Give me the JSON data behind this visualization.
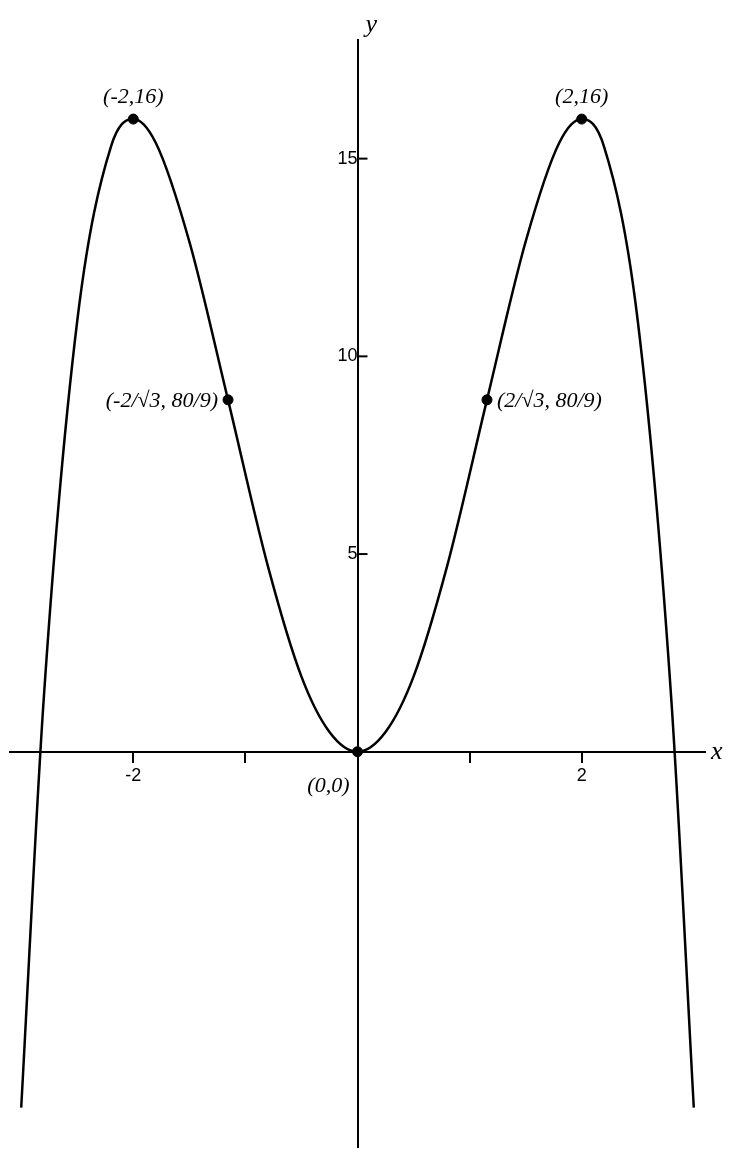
{
  "chart_data": {
    "type": "line",
    "xlabel": "x",
    "ylabel": "y",
    "line_style": "solid",
    "marker": "none",
    "grid": false,
    "legend": false,
    "xlim": [
      -3.1,
      3.1
    ],
    "ylim": [
      -10,
      18
    ],
    "xticks": [
      -2,
      {
        "value": -1,
        "label": null
      },
      {
        "value": 1,
        "label": null
      },
      2
    ],
    "yticks": [
      5,
      10,
      15
    ],
    "series": [
      {
        "color": "#000000",
        "x": [
          -3,
          -2.8,
          -2.5,
          -2.2,
          -2,
          -1.8,
          -1.5,
          -1.155,
          -0.8,
          -0.5,
          -0.25,
          0,
          0.25,
          0.5,
          0.8,
          1.155,
          1.5,
          1.8,
          2,
          2.2,
          2.5,
          2.8,
          3
        ],
        "values": [
          -9,
          1.3,
          10.9,
          15.3,
          16,
          15.4,
          12.9,
          8.9,
          4.7,
          1.9,
          0.5,
          0,
          0.5,
          1.9,
          4.7,
          8.9,
          12.9,
          15.4,
          16,
          15.3,
          10.9,
          1.3,
          -9
        ]
      },
      {
        "type": "scatter",
        "color": "#000000",
        "marker": "circle",
        "x": [
          -2,
          -1.155,
          0,
          1.155,
          2
        ],
        "values": [
          16,
          8.9,
          0,
          8.9,
          16
        ]
      }
    ],
    "annotations": [
      {
        "text": "(-2,16)",
        "x": -2,
        "y": 16
      },
      {
        "text": "(2,16)",
        "x": 2,
        "y": 16
      },
      {
        "text": "(-2/√3, 80/9)",
        "x": -1.155,
        "y": 8.9
      },
      {
        "text": "(2/√3, 80/9)",
        "x": 1.155,
        "y": 8.9
      },
      {
        "text": "(0,0)",
        "x": 0,
        "y": 0
      }
    ]
  }
}
